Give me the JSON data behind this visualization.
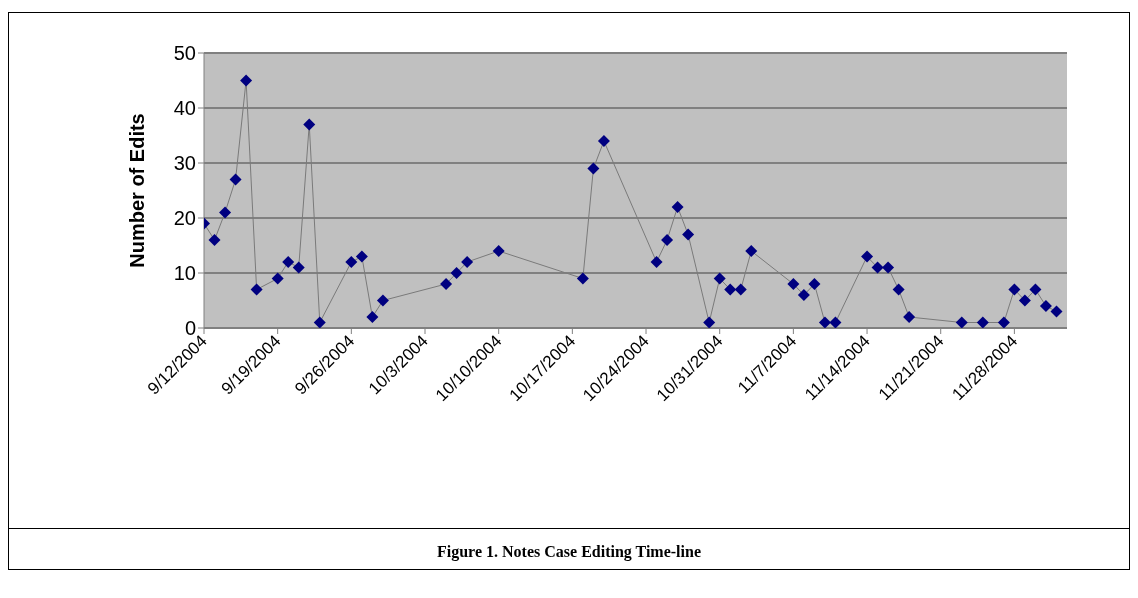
{
  "chart_data": {
    "type": "line",
    "title": "Figure 1.  Notes Case Editing Time-line",
    "ylabel": "Number of Edits",
    "marker": "diamond",
    "line_style": "solid",
    "grid": "y",
    "legend": false,
    "xlim": [
      "2004-09-12",
      "2004-12-03"
    ],
    "ylim": [
      0,
      50
    ],
    "yticks": [
      0,
      10,
      20,
      30,
      40,
      50
    ],
    "xticks": [
      {
        "value": "2004-09-12",
        "label": "9/12/2004"
      },
      {
        "value": "2004-09-19",
        "label": "9/19/2004"
      },
      {
        "value": "2004-09-26",
        "label": "9/26/2004"
      },
      {
        "value": "2004-10-03",
        "label": "10/3/2004"
      },
      {
        "value": "2004-10-10",
        "label": "10/10/2004"
      },
      {
        "value": "2004-10-17",
        "label": "10/17/2004"
      },
      {
        "value": "2004-10-24",
        "label": "10/24/2004"
      },
      {
        "value": "2004-10-31",
        "label": "10/31/2004"
      },
      {
        "value": "2004-11-07",
        "label": "11/7/2004"
      },
      {
        "value": "2004-11-14",
        "label": "11/14/2004"
      },
      {
        "value": "2004-11-21",
        "label": "11/21/2004"
      },
      {
        "value": "2004-11-28",
        "label": "11/28/2004"
      }
    ],
    "x": [
      "2004-09-12",
      "2004-09-13",
      "2004-09-14",
      "2004-09-15",
      "2004-09-16",
      "2004-09-17",
      "2004-09-19",
      "2004-09-20",
      "2004-09-21",
      "2004-09-22",
      "2004-09-23",
      "2004-09-26",
      "2004-09-27",
      "2004-09-28",
      "2004-09-29",
      "2004-10-05",
      "2004-10-06",
      "2004-10-07",
      "2004-10-10",
      "2004-10-18",
      "2004-10-19",
      "2004-10-20",
      "2004-10-25",
      "2004-10-26",
      "2004-10-27",
      "2004-10-28",
      "2004-10-30",
      "2004-10-31",
      "2004-11-01",
      "2004-11-02",
      "2004-11-03",
      "2004-11-07",
      "2004-11-08",
      "2004-11-09",
      "2004-11-10",
      "2004-11-11",
      "2004-11-14",
      "2004-11-15",
      "2004-11-16",
      "2004-11-17",
      "2004-11-18",
      "2004-11-23",
      "2004-11-25",
      "2004-11-27",
      "2004-11-28",
      "2004-11-29",
      "2004-11-30",
      "2004-12-01",
      "2004-12-02"
    ],
    "series": [
      {
        "color": "#000080",
        "values": [
          19,
          16,
          21,
          27,
          45,
          7,
          9,
          12,
          11,
          37,
          1,
          12,
          13,
          2,
          5,
          8,
          10,
          12,
          14,
          9,
          29,
          34,
          12,
          16,
          22,
          17,
          1,
          9,
          7,
          7,
          14,
          8,
          6,
          8,
          1,
          1,
          13,
          11,
          11,
          7,
          2,
          1,
          1,
          1,
          7,
          5,
          7,
          4,
          3
        ]
      }
    ]
  }
}
